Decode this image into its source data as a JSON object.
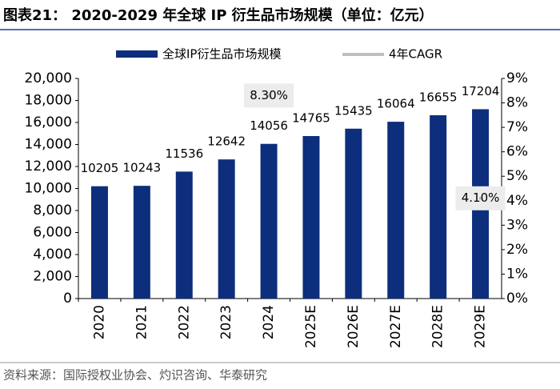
{
  "chart_data": {
    "type": "bar",
    "title": "图表21： 2020-2029 年全球 IP 衍生品市场规模（单位：亿元）",
    "source": "资料来源：国际授权业协会、灼识咨询、华泰研究",
    "categories": [
      "2020",
      "2021",
      "2022",
      "2023",
      "2024",
      "2025E",
      "2026E",
      "2027E",
      "2028E",
      "2029E"
    ],
    "series": [
      {
        "name": "全球IP衍生品市场规模",
        "color": "#0c2e7c",
        "values": [
          10205,
          10243,
          11536,
          12642,
          14056,
          14765,
          15435,
          16064,
          16655,
          17204
        ]
      },
      {
        "name": "4年CAGR",
        "color": "#bfbfbf",
        "axis": "y2",
        "values": [
          null,
          null,
          null,
          null,
          8.3,
          null,
          null,
          null,
          null,
          4.1
        ],
        "value_labels": [
          null,
          null,
          null,
          null,
          "8.30%",
          null,
          null,
          null,
          null,
          "4.10%"
        ]
      }
    ],
    "ylim": [
      0,
      20000
    ],
    "yticks": [
      0,
      {
        "value": 2000,
        "label": "2,000"
      },
      {
        "value": 4000,
        "label": "4,000"
      },
      {
        "value": 6000,
        "label": "6,000"
      },
      {
        "value": 8000,
        "label": "8,000"
      },
      {
        "value": 10000,
        "label": "10,000"
      },
      {
        "value": 12000,
        "label": "12,000"
      },
      {
        "value": 14000,
        "label": "14,000"
      },
      {
        "value": 16000,
        "label": "16,000"
      },
      {
        "value": 18000,
        "label": "18,000"
      },
      {
        "value": 20000,
        "label": "20,000"
      }
    ],
    "y2lim": [
      0,
      9
    ],
    "y2ticks": [
      {
        "value": 0,
        "label": "0%"
      },
      {
        "value": 1,
        "label": "1%"
      },
      {
        "value": 2,
        "label": "2%"
      },
      {
        "value": 3,
        "label": "3%"
      },
      {
        "value": 4,
        "label": "4%"
      },
      {
        "value": 5,
        "label": "5%"
      },
      {
        "value": 6,
        "label": "6%"
      },
      {
        "value": 7,
        "label": "7%"
      },
      {
        "value": 8,
        "label": "8%"
      },
      {
        "value": 9,
        "label": "9%"
      }
    ]
  }
}
